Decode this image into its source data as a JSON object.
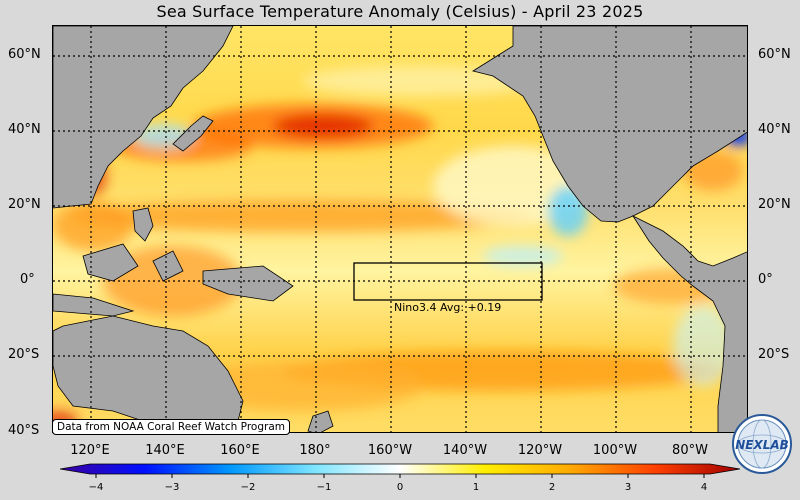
{
  "title": "Sea Surface Temperature Anomaly (Celsius) - April 23 2025",
  "source_note": "Data from NOAA Coral Reef Watch Program",
  "nino_box": {
    "label": "Nino3.4 Avg: +0.19",
    "lon_range": [
      "170°W",
      "120°W"
    ],
    "lat_range": [
      "5°S",
      "5°N"
    ]
  },
  "lat_labels": [
    "60°N",
    "40°N",
    "20°N",
    "0°",
    "20°S",
    "40°S"
  ],
  "lon_labels": [
    "120°E",
    "140°E",
    "160°E",
    "180°",
    "160°W",
    "140°W",
    "120°W",
    "100°W",
    "80°W"
  ],
  "colorbar": {
    "min": -4,
    "max": 4,
    "tick_labels": [
      "−4",
      "−3",
      "−2",
      "−1",
      "0",
      "1",
      "2",
      "3",
      "4"
    ],
    "colors": [
      "#3b00a0",
      "#0010ff",
      "#0098ff",
      "#7fe5ff",
      "#ffffff",
      "#ffee00",
      "#ffaa00",
      "#ff4000",
      "#a00000"
    ]
  },
  "logo": {
    "text": "NEXLAB"
  },
  "palette": {
    "land": "#a6a6a6",
    "grid": "#000000",
    "background": "#d9d9d9"
  }
}
